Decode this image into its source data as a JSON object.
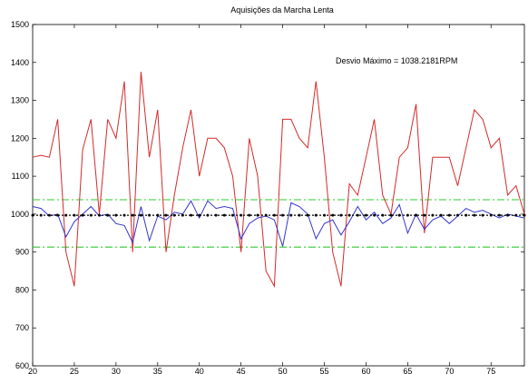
{
  "chart_data": {
    "type": "line",
    "title": "Aquisições da Marcha Lenta",
    "annotation": "Desvio Máximo = 1038.2181RPM",
    "xlim": [
      20,
      79
    ],
    "ylim": [
      600,
      1500
    ],
    "xticks": [
      20,
      25,
      30,
      35,
      40,
      45,
      50,
      55,
      60,
      65,
      70,
      75
    ],
    "yticks": [
      600,
      700,
      800,
      900,
      1000,
      1100,
      1200,
      1300,
      1400,
      1500
    ],
    "grid": false,
    "series": [
      {
        "color": "#d42a2a",
        "style": "solid",
        "x": [
          20,
          21,
          22,
          23,
          24,
          25,
          26,
          27,
          28,
          29,
          30,
          31,
          32,
          33,
          34,
          35,
          36,
          37,
          38,
          39,
          40,
          41,
          42,
          43,
          44,
          45,
          46,
          47,
          48,
          49,
          50,
          51,
          52,
          53,
          54,
          55,
          56,
          57,
          58,
          59,
          60,
          61,
          62,
          63,
          64,
          65,
          66,
          67,
          68,
          69,
          70,
          71,
          72,
          73,
          74,
          75,
          76,
          77,
          78,
          79
        ],
        "values": [
          1150,
          1155,
          1150,
          1250,
          900,
          810,
          1170,
          1250,
          1000,
          1250,
          1200,
          1350,
          900,
          1375,
          1150,
          1275,
          900,
          1050,
          1175,
          1275,
          1100,
          1200,
          1200,
          1175,
          1100,
          900,
          1200,
          1100,
          850,
          810,
          1250,
          1250,
          1200,
          1175,
          1350,
          1150,
          900,
          810,
          1080,
          1050,
          1150,
          1250,
          1050,
          1000,
          1150,
          1175,
          1290,
          950,
          1150,
          1150,
          1150,
          1075,
          1175,
          1275,
          1250,
          1175,
          1200,
          1050,
          1075,
          1000
        ]
      },
      {
        "color": "#3535d0",
        "style": "solid",
        "x": [
          20,
          21,
          22,
          23,
          24,
          25,
          26,
          27,
          28,
          29,
          30,
          31,
          32,
          33,
          34,
          35,
          36,
          37,
          38,
          39,
          40,
          41,
          42,
          43,
          44,
          45,
          46,
          47,
          48,
          49,
          50,
          51,
          52,
          53,
          54,
          55,
          56,
          57,
          58,
          59,
          60,
          61,
          62,
          63,
          64,
          65,
          66,
          67,
          68,
          69,
          70,
          71,
          72,
          73,
          74,
          75,
          76,
          77,
          78,
          79
        ],
        "values": [
          1020,
          1015,
          995,
          1000,
          940,
          980,
          1000,
          1020,
          995,
          1000,
          975,
          970,
          925,
          1020,
          930,
          995,
          985,
          1005,
          1000,
          1035,
          990,
          1035,
          1015,
          1020,
          1015,
          935,
          975,
          990,
          995,
          985,
          915,
          1030,
          1020,
          1000,
          935,
          975,
          985,
          945,
          980,
          1020,
          985,
          1005,
          975,
          990,
          1025,
          950,
          1000,
          960,
          985,
          995,
          975,
          995,
          1015,
          1005,
          1010,
          1000,
          990,
          1000,
          995,
          990
        ]
      },
      {
        "color": "#000000",
        "style": "dotted-markers",
        "x": [
          20,
          79
        ],
        "values": [
          997,
          997
        ]
      },
      {
        "color": "#2ecc2e",
        "style": "dash-dot",
        "x": [
          20,
          79
        ],
        "values": [
          1038,
          1038
        ]
      },
      {
        "color": "#2ecc2e",
        "style": "dash-dot",
        "x": [
          20,
          79
        ],
        "values": [
          913,
          913
        ]
      }
    ]
  }
}
